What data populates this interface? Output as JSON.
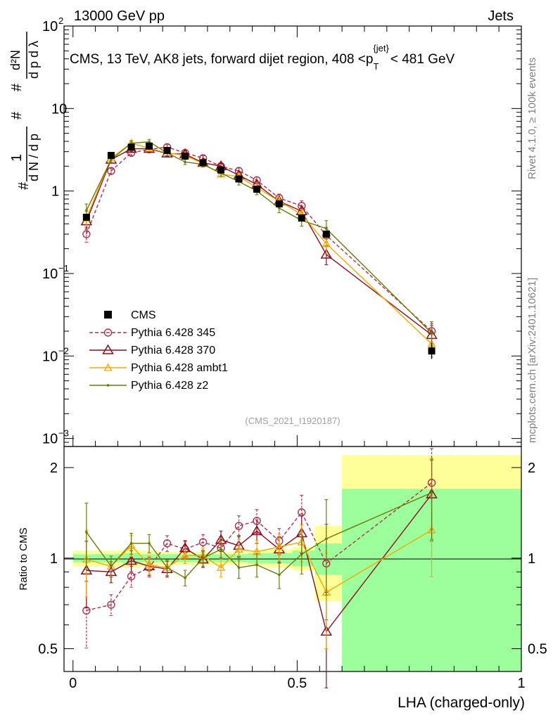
{
  "header": {
    "left": "13000 GeV pp",
    "right": "Jets"
  },
  "side_labels": {
    "top": "Rivet 4.1.0, ≥ 100k events",
    "bottom": "mcplots.cern.ch [arXiv:2401.10621]"
  },
  "colors": {
    "cms": "#000000",
    "p345": "#b0304a",
    "p370": "#8b0f1f",
    "ambt1": "#f5a800",
    "z2": "#6b7a06",
    "band_inner": "#9cff9c",
    "band_outer": "#ffff99"
  },
  "chart_data": [
    {
      "type": "line",
      "title": "CMS, 13 TeV, AK8 jets, forward dijet region, 408 < p_T^{jet} < 481 GeV",
      "title_parts": {
        "main": "CMS, 13 TeV, AK8 jets, forward dijet region, 408 <p",
        "sub": "T",
        "sup": "{jet}",
        "tail": "< 481 GeV"
      },
      "ylabel": "1/dN/dp_T # d²N/dp_T dλ",
      "yscale": "log",
      "ylim": [
        0.0008,
        100
      ],
      "xlim": [
        -0.02,
        1.0
      ],
      "y_ticks": [
        {
          "value": 100,
          "label": "10",
          "exp": "2"
        },
        {
          "value": 10,
          "label": "10",
          "exp": ""
        },
        {
          "value": 1,
          "label": "1",
          "exp": ""
        },
        {
          "value": 0.1,
          "label": "10",
          "exp": "−1"
        },
        {
          "value": 0.01,
          "label": "10",
          "exp": "−2"
        },
        {
          "value": 0.001,
          "label": "10",
          "exp": "−3"
        }
      ],
      "watermark": "(CMS_2021_I1920187)",
      "legend_position": "bottom-left",
      "cms": {
        "name": "CMS",
        "x": [
          0.03,
          0.085,
          0.13,
          0.17,
          0.21,
          0.25,
          0.29,
          0.33,
          0.37,
          0.41,
          0.46,
          0.51,
          0.565,
          0.8
        ],
        "y": [
          0.48,
          2.7,
          3.4,
          3.5,
          3.1,
          2.65,
          2.2,
          1.8,
          1.4,
          1.05,
          0.7,
          0.47,
          0.3,
          0.0115
        ]
      },
      "series": [
        {
          "name": "Pythia 6.428 345",
          "key": "p345",
          "marker": "circle",
          "dashed": true,
          "y": [
            0.3,
            1.75,
            2.9,
            3.2,
            3.4,
            2.9,
            2.5,
            2.0,
            1.75,
            1.35,
            0.82,
            0.66,
            0.29,
            0.02
          ]
        },
        {
          "name": "Pythia 6.428 370",
          "key": "p370",
          "marker": "triangle",
          "dashed": false,
          "y": [
            0.43,
            2.4,
            3.25,
            3.25,
            2.85,
            2.8,
            2.2,
            2.0,
            1.55,
            1.2,
            0.75,
            0.57,
            0.17,
            0.018
          ]
        },
        {
          "name": "Pythia 6.428 ambt1",
          "key": "ambt1",
          "marker": "triangle-small",
          "dashed": false,
          "y": [
            0.47,
            2.5,
            3.8,
            3.3,
            2.9,
            2.7,
            2.15,
            1.6,
            1.5,
            1.1,
            0.75,
            0.52,
            0.23,
            0.014
          ]
        },
        {
          "name": "Pythia 6.428 z2",
          "key": "z2",
          "marker": "dot",
          "dashed": false,
          "y": [
            0.58,
            2.4,
            3.8,
            3.95,
            2.9,
            2.25,
            2.1,
            1.65,
            1.3,
            1.0,
            0.62,
            0.44,
            0.35,
            0.019
          ]
        }
      ]
    },
    {
      "type": "line",
      "title": "Ratio to CMS",
      "xlabel": "LHA (charged-only)",
      "ylabel": "Ratio to CMS",
      "yscale": "log",
      "ylim": [
        0.42,
        2.35
      ],
      "xlim": [
        -0.02,
        1.0
      ],
      "x_ticks": [
        {
          "value": 0,
          "label": "0"
        },
        {
          "value": 0.5,
          "label": "0.5"
        },
        {
          "value": 1,
          "label": "1"
        }
      ],
      "y_ticks": [
        {
          "value": 0.5,
          "label": "0.5"
        },
        {
          "value": 1,
          "label": "1"
        },
        {
          "value": 2,
          "label": "2"
        }
      ],
      "bands": {
        "edges": [
          0,
          0.06,
          0.11,
          0.15,
          0.19,
          0.23,
          0.27,
          0.31,
          0.35,
          0.39,
          0.43,
          0.49,
          0.54,
          0.6,
          1.0
        ],
        "inner_half": [
          0.03,
          0.03,
          0.04,
          0.03,
          0.03,
          0.03,
          0.03,
          0.03,
          0.03,
          0.04,
          0.04,
          0.06,
          0.12,
          0.7
        ],
        "outer_half": [
          0.06,
          0.06,
          0.07,
          0.06,
          0.05,
          0.05,
          0.05,
          0.05,
          0.05,
          0.06,
          0.07,
          0.09,
          0.28,
          1.2
        ]
      },
      "series": [
        {
          "key": "p345",
          "y": [
            0.67,
            0.7,
            0.87,
            0.93,
            1.12,
            1.07,
            1.13,
            1.08,
            1.28,
            1.33,
            1.14,
            1.42,
            0.96,
            1.78
          ]
        },
        {
          "key": "p370",
          "y": [
            0.91,
            0.9,
            0.98,
            0.94,
            0.92,
            1.08,
            0.99,
            1.15,
            1.1,
            1.23,
            1.07,
            1.21,
            0.57,
            1.63
          ]
        },
        {
          "key": "ambt1",
          "y": [
            0.99,
            0.94,
            1.1,
            0.95,
            0.93,
            1.02,
            1.02,
            0.93,
            1.07,
            1.05,
            1.09,
            1.13,
            0.77,
            1.24
          ]
        },
        {
          "key": "z2",
          "y": [
            1.22,
            0.94,
            1.12,
            1.12,
            0.93,
            0.86,
            1.0,
            1.07,
            0.93,
            0.95,
            0.88,
            1.03,
            1.16,
            1.65
          ]
        }
      ]
    }
  ]
}
